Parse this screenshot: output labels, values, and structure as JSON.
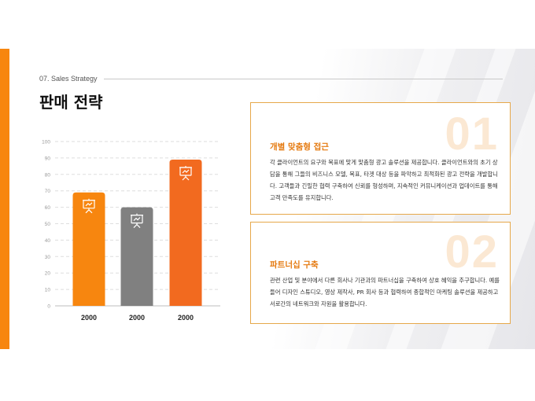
{
  "header": {
    "section_label": "07. Sales Strategy",
    "title": "판매 전략"
  },
  "cards": [
    {
      "number": "01",
      "title": "개별 맞춤형 접근",
      "body": "각 클라이언트의 요구와 목표에 맞게 맞춤형 광고 솔루션을 제공합니다. 클라이언트와의 초기 상담을 통해 그들의 비즈니스 모델, 목표, 타겟 대상 등을 파악하고 최적화된 광고 전략을 개발합니다. 고객들과 긴밀한 협력 구축하여 신뢰를 형성하며, 지속적인 커뮤니케이션과 업데이트를 통해 고객 만족도를 유지합니다."
    },
    {
      "number": "02",
      "title": "파트너십 구축",
      "body": "관련 산업 및 분야에서 다른 회사나 기관과의 파트너십을 구축하여 상호 혜익을 추구합니다. 예를 들어 디자인 스튜디오, 영상 제작사, PR 회사 등과 협력하여 종합적인 마케팅 솔루션을 제공하고 서로간의 네트워크와 자원을 활용합니다."
    }
  ],
  "colors": {
    "accent": "#f7860f",
    "bar_orange": "#f7860f",
    "bar_gray": "#808080",
    "bar_orange_red": "#f26a1f",
    "card_border": "#e6a84a"
  },
  "chart_data": {
    "type": "bar",
    "categories": [
      "2000",
      "2000",
      "2000"
    ],
    "values": [
      69,
      60,
      89
    ],
    "ylim": [
      0,
      100
    ],
    "yticks": [
      0,
      10,
      20,
      30,
      40,
      50,
      60,
      70,
      80,
      90,
      100
    ],
    "grid": true,
    "bar_icon": "presentation-board-icon",
    "bar_colors": [
      "#f7860f",
      "#808080",
      "#f26a1f"
    ]
  }
}
